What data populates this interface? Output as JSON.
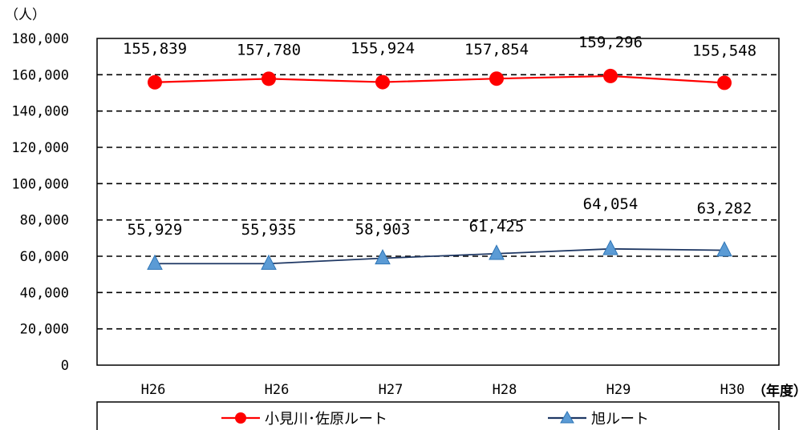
{
  "chart_data": {
    "type": "line",
    "categories": [
      "H26",
      "H26",
      "H27",
      "H28",
      "H29",
      "H30"
    ],
    "series": [
      {
        "name": "小見川･佐原ルート",
        "values": [
          155839,
          157780,
          155924,
          157854,
          159296,
          155548
        ],
        "labels": [
          "155,839",
          "157,780",
          "155,924",
          "157,854",
          "159,296",
          "155,548"
        ],
        "color": "#ff0000",
        "marker": "circle"
      },
      {
        "name": "旭ルート",
        "values": [
          55929,
          55935,
          58903,
          61425,
          64054,
          63282
        ],
        "labels": [
          "55,929",
          "55,935",
          "58,903",
          "61,425",
          "64,054",
          "63,282"
        ],
        "color": "#1f3864",
        "marker": "triangle",
        "marker_fill": "#5b9bd5"
      }
    ],
    "ylim": [
      0,
      180000
    ],
    "yticks": [
      "0",
      "20,000",
      "40,000",
      "60,000",
      "80,000",
      "100,000",
      "120,000",
      "140,000",
      "160,000",
      "180,000"
    ],
    "ylabel": "（人）",
    "xlabel": "（年度）",
    "grid": true,
    "legend_position": "bottom"
  }
}
